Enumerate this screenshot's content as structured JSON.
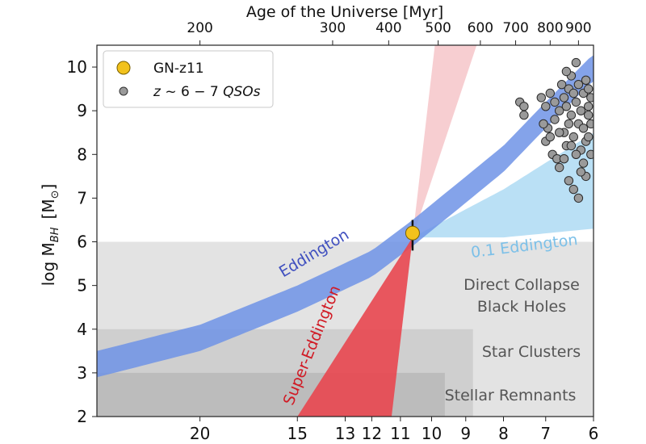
{
  "chart_data": {
    "type": "scatter",
    "title": "",
    "top_axis": {
      "label": "Age of the Universe [Myr]",
      "ticks": [
        {
          "label": "200",
          "z": 20.0
        },
        {
          "label": "300",
          "z": 13.5
        },
        {
          "label": "400",
          "z": 11.4
        },
        {
          "label": "500",
          "z": 9.8
        },
        {
          "label": "600",
          "z": 8.6
        },
        {
          "label": "700",
          "z": 7.7
        },
        {
          "label": "800",
          "z": 6.9
        },
        {
          "label": "900",
          "z": 6.3
        }
      ]
    },
    "xaxis": {
      "label": "",
      "scale": "log(1+z), decreasing left to right",
      "range": [
        27,
        6
      ],
      "ticks": [
        {
          "label": "20",
          "z": 20
        },
        {
          "label": "15",
          "z": 15
        },
        {
          "label": "13",
          "z": 13
        },
        {
          "label": "12",
          "z": 12
        },
        {
          "label": "11",
          "z": 11
        },
        {
          "label": "10",
          "z": 10
        },
        {
          "label": "9",
          "z": 9
        },
        {
          "label": "8",
          "z": 8
        },
        {
          "label": "7",
          "z": 7
        },
        {
          "label": "6",
          "z": 6
        }
      ]
    },
    "yaxis": {
      "label_main": "log M",
      "label_sub": "BH",
      "label_unit": "[M",
      "label_sun": "⊙",
      "label_close": "]",
      "range": [
        2,
        10.5
      ],
      "ticks": [
        "2",
        "3",
        "4",
        "5",
        "6",
        "7",
        "8",
        "9",
        "10"
      ]
    },
    "seed_regions": [
      {
        "label_lines": [
          "Direct Collapse",
          "Black Holes"
        ],
        "mass_range": [
          2,
          6
        ],
        "z_max": 6,
        "color": "#e3e3e3"
      },
      {
        "label_lines": [
          "Star Clusters"
        ],
        "mass_range": [
          2,
          4
        ],
        "z_max": 8.8,
        "color": "#cfcfcf"
      },
      {
        "label_lines": [
          "Stellar Remnants"
        ],
        "mass_range": [
          2,
          3
        ],
        "z_max": 9.6,
        "color": "#bcbcbc"
      }
    ],
    "growth_tracks": [
      {
        "name": "Eddington",
        "label": "Eddington",
        "color": "#3f63d6",
        "band_color": "#6f93e6",
        "center_at_z": [
          [
            27,
            3.2
          ],
          [
            20,
            3.8
          ],
          [
            15,
            4.7
          ],
          [
            12,
            5.5
          ],
          [
            10.6,
            6.2
          ],
          [
            8,
            7.9
          ],
          [
            7,
            8.9
          ],
          [
            6,
            10.0
          ]
        ],
        "half_width_dex": 0.3
      },
      {
        "name": "0.1 Eddington",
        "label": "0.1 Eddington",
        "color": "#8cc8ea",
        "band_color": "#a9d8f2",
        "apex": {
          "z": 10.6,
          "logM": 6.1
        },
        "upper_at_z": [
          [
            10.6,
            6.1
          ],
          [
            8,
            7.2
          ],
          [
            6,
            8.5
          ]
        ],
        "lower_at_z": [
          [
            10.6,
            6.1
          ],
          [
            8,
            6.1
          ],
          [
            6,
            6.3
          ]
        ]
      },
      {
        "name": "Super-Eddington",
        "label": "Super-Eddington",
        "color": "#e0212b",
        "band_color": "#e8464f",
        "apex": {
          "z": 10.6,
          "logM": 6.1
        },
        "at_logM_2_z": [
          15.0,
          11.3
        ],
        "extension_color": "#f6c6c9",
        "at_logM_10.5_z": [
          9.9,
          8.7
        ]
      }
    ],
    "series": [
      {
        "name": "GN-z11",
        "legend_label": "GN-z11",
        "marker": "circle",
        "color": "#f2c21c",
        "points": [
          {
            "z": 10.6,
            "logM": 6.2,
            "yerr_low": 0.4,
            "yerr_high": 0.3
          }
        ]
      },
      {
        "name": "z ~ 6 - 7 QSOs",
        "legend_prefix": "z",
        "legend_rest": " ~ 6 − 7 ",
        "legend_suffix": "QSOs",
        "marker": "circle",
        "color": "#9a9a9a",
        "points": [
          {
            "z": 7.6,
            "logM": 9.2
          },
          {
            "z": 7.5,
            "logM": 9.1
          },
          {
            "z": 7.5,
            "logM": 8.9
          },
          {
            "z": 7.1,
            "logM": 9.3
          },
          {
            "z": 7.0,
            "logM": 9.1
          },
          {
            "z": 6.9,
            "logM": 9.4
          },
          {
            "z": 6.95,
            "logM": 8.6
          },
          {
            "z": 7.0,
            "logM": 8.3
          },
          {
            "z": 6.85,
            "logM": 8.0
          },
          {
            "z": 6.8,
            "logM": 8.8
          },
          {
            "z": 6.75,
            "logM": 7.9
          },
          {
            "z": 6.7,
            "logM": 7.7
          },
          {
            "z": 6.7,
            "logM": 9.0
          },
          {
            "z": 6.65,
            "logM": 9.6
          },
          {
            "z": 6.6,
            "logM": 8.5
          },
          {
            "z": 6.6,
            "logM": 9.3
          },
          {
            "z": 6.55,
            "logM": 8.2
          },
          {
            "z": 6.5,
            "logM": 7.4
          },
          {
            "z": 6.5,
            "logM": 9.5
          },
          {
            "z": 6.45,
            "logM": 8.9
          },
          {
            "z": 6.45,
            "logM": 9.8
          },
          {
            "z": 6.4,
            "logM": 8.4
          },
          {
            "z": 6.4,
            "logM": 7.2
          },
          {
            "z": 6.35,
            "logM": 9.2
          },
          {
            "z": 6.35,
            "logM": 10.1
          },
          {
            "z": 6.3,
            "logM": 8.7
          },
          {
            "z": 6.3,
            "logM": 7.0
          },
          {
            "z": 6.3,
            "logM": 9.6
          },
          {
            "z": 6.25,
            "logM": 8.1
          },
          {
            "z": 6.25,
            "logM": 9.0
          },
          {
            "z": 6.2,
            "logM": 9.4
          },
          {
            "z": 6.2,
            "logM": 7.8
          },
          {
            "z": 6.2,
            "logM": 8.6
          },
          {
            "z": 6.15,
            "logM": 9.7
          },
          {
            "z": 6.15,
            "logM": 8.3
          },
          {
            "z": 6.15,
            "logM": 7.5
          },
          {
            "z": 6.1,
            "logM": 9.1
          },
          {
            "z": 6.1,
            "logM": 8.9
          },
          {
            "z": 6.1,
            "logM": 9.5
          },
          {
            "z": 6.05,
            "logM": 8.0
          },
          {
            "z": 6.05,
            "logM": 9.3
          },
          {
            "z": 6.05,
            "logM": 8.7
          },
          {
            "z": 6.5,
            "logM": 8.7
          },
          {
            "z": 6.55,
            "logM": 9.1
          },
          {
            "z": 6.6,
            "logM": 7.9
          },
          {
            "z": 6.8,
            "logM": 9.2
          },
          {
            "z": 6.9,
            "logM": 8.4
          },
          {
            "z": 6.35,
            "logM": 8.0
          },
          {
            "z": 6.4,
            "logM": 9.4
          },
          {
            "z": 6.45,
            "logM": 8.2
          },
          {
            "z": 6.25,
            "logM": 7.6
          },
          {
            "z": 6.1,
            "logM": 8.4
          },
          {
            "z": 6.7,
            "logM": 8.5
          },
          {
            "z": 7.05,
            "logM": 8.7
          },
          {
            "z": 6.55,
            "logM": 9.9
          }
        ]
      }
    ],
    "legend": {
      "position": "top-left"
    }
  }
}
